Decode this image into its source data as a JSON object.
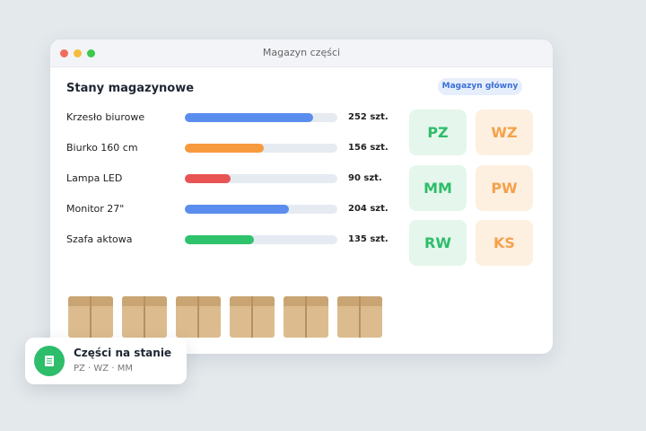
{
  "window": {
    "title": "Magazyn części"
  },
  "panel": {
    "heading": "Stany magazynowe",
    "badge": "Magazyn główny"
  },
  "stock": {
    "xlim": [
      0,
      300
    ],
    "track_color": "#e6ebf2",
    "items": [
      {
        "name": "Krzesło biurowe",
        "value": 252,
        "value_label": "252 szt.",
        "color": "#5b8def"
      },
      {
        "name": "Biurko 160 cm",
        "value": 156,
        "value_label": "156 szt.",
        "color": "#f79a3e"
      },
      {
        "name": "Lampa LED",
        "value": 90,
        "value_label": "90 szt.",
        "color": "#e85454"
      },
      {
        "name": "Monitor 27\"",
        "value": 204,
        "value_label": "204 szt.",
        "color": "#5b8def"
      },
      {
        "name": "Szafa aktowa",
        "value": 135,
        "value_label": "135 szt.",
        "color": "#2ec36c"
      }
    ]
  },
  "tiles": [
    {
      "label": "PZ",
      "tone": "green"
    },
    {
      "label": "WZ",
      "tone": "orange"
    },
    {
      "label": "MM",
      "tone": "green"
    },
    {
      "label": "PW",
      "tone": "orange"
    },
    {
      "label": "RW",
      "tone": "green"
    },
    {
      "label": "KS",
      "tone": "orange"
    }
  ],
  "toast": {
    "title": "Części na stanie",
    "subtitle": "PZ · WZ · MM"
  }
}
